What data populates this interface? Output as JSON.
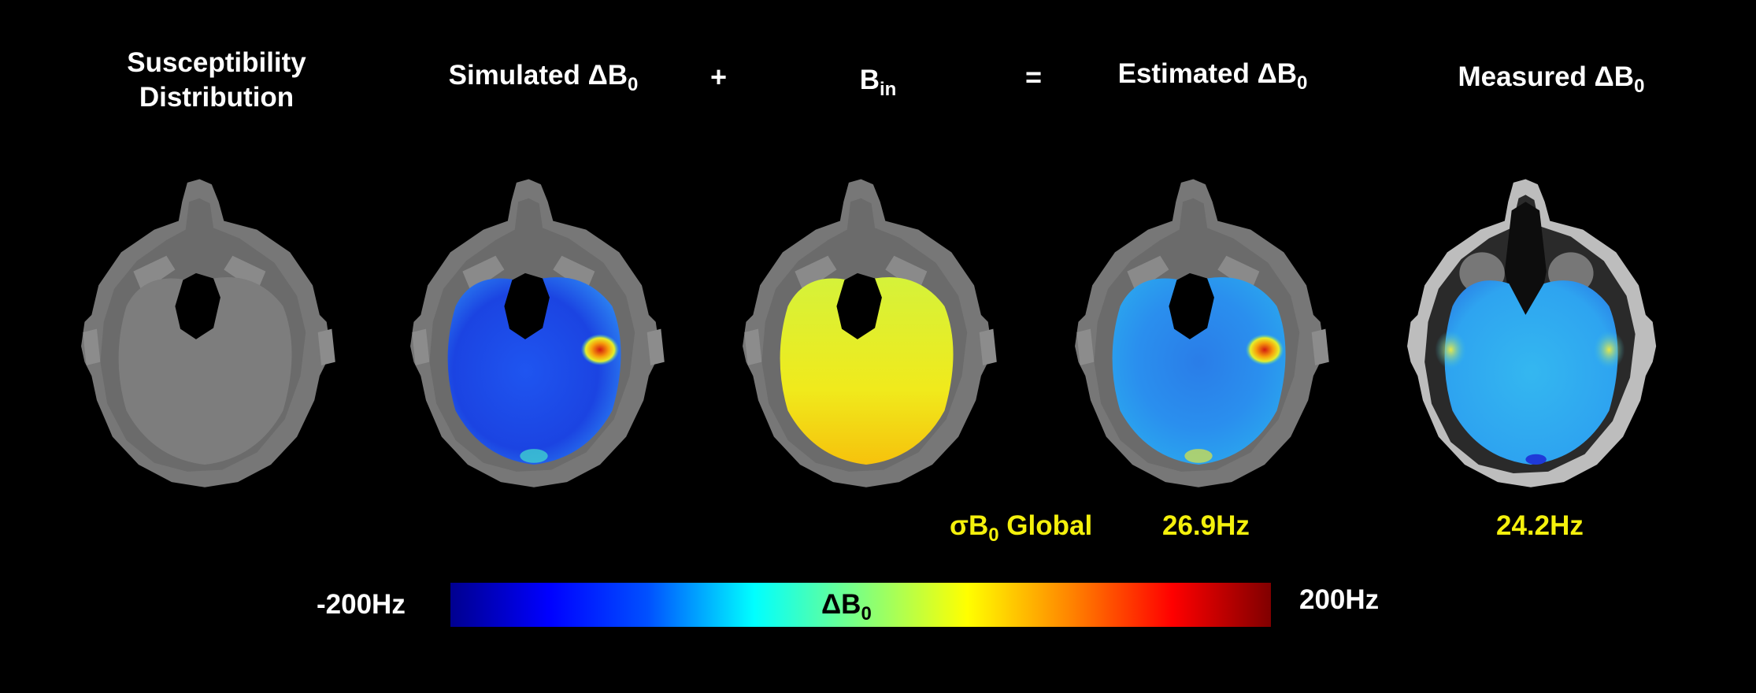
{
  "panels": [
    {
      "title_line1": "Susceptibility",
      "title_line2": "Distribution"
    },
    {
      "title_main": "Simulated ΔB",
      "title_sub": "0"
    },
    {
      "title_main": "B",
      "title_sub": "in"
    },
    {
      "title_main": "Estimated ΔB",
      "title_sub": "0"
    },
    {
      "title_main": "Measured ΔB",
      "title_sub": "0"
    }
  ],
  "operators": {
    "plus": "+",
    "equals": "="
  },
  "stats": {
    "label_prefix": "σB",
    "label_sub": "0",
    "label_suffix": " Global",
    "estimated_value": "26.9Hz",
    "measured_value": "24.2Hz"
  },
  "colorbar": {
    "min_label": "-200Hz",
    "max_label": "200Hz",
    "title_main": "ΔB",
    "title_sub": "0",
    "colormap": "jet"
  },
  "colors": {
    "background": "#000000",
    "stat_text": "#f4f00c",
    "label_text": "#ffffff"
  }
}
